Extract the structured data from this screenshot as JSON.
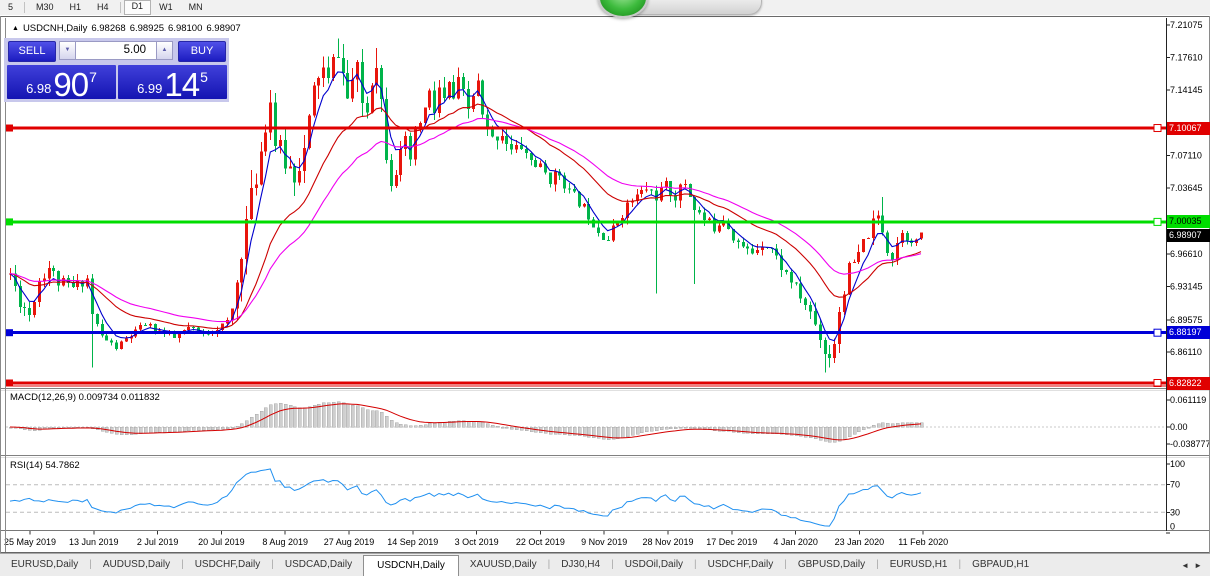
{
  "icons": {
    "collapse": "▲",
    "spin_down": "▼",
    "spin_up": "▲",
    "scroll_left": "◄",
    "scroll_right": "►"
  },
  "toolbar": {
    "timeframes": [
      "5",
      "M30",
      "H1",
      "H4",
      "D1",
      "W1",
      "MN"
    ],
    "active": "D1",
    "separators_after": [
      0,
      3
    ]
  },
  "window": {
    "symbol_header": {
      "symbol": "USDCNH,Daily",
      "open": "6.98268",
      "high": "6.98925",
      "low": "6.98100",
      "close": "6.98907"
    }
  },
  "trade_panel": {
    "sell_label": "SELL",
    "buy_label": "BUY",
    "volume": "5.00",
    "sell_price": {
      "prefix": "6.98",
      "big": "90",
      "sup": "7"
    },
    "buy_price": {
      "prefix": "6.99",
      "big": "14",
      "sup": "5"
    }
  },
  "chart_data": {
    "type": "candlestick",
    "symbol": "USDCNH",
    "timeframe": "Daily",
    "bar_count": 190,
    "last_bar": {
      "open": 6.98268,
      "high": 6.98925,
      "low": 6.981,
      "close": 6.98907
    },
    "candle_colors": {
      "bull": "#e8150c",
      "bear": "#00b44a"
    },
    "y_axis": {
      "min": 6.818,
      "max": 7.215,
      "ticks": [
        {
          "label": "7.21075",
          "price": 7.21075
        },
        {
          "label": "7.17610",
          "price": 7.1761
        },
        {
          "label": "7.14145",
          "price": 7.14145
        },
        {
          "label": "7.07110",
          "price": 7.0711
        },
        {
          "label": "7.03645",
          "price": 7.03645
        },
        {
          "label": "6.96610",
          "price": 6.9661
        },
        {
          "label": "6.93145",
          "price": 6.93145
        },
        {
          "label": "6.89575",
          "price": 6.89575
        },
        {
          "label": "6.86110",
          "price": 6.8611
        }
      ]
    },
    "x_axis": {
      "labels": [
        "25 May 2019",
        "13 Jun 2019",
        "2 Jul 2019",
        "20 Jul 2019",
        "8 Aug 2019",
        "27 Aug 2019",
        "14 Sep 2019",
        "3 Oct 2019",
        "22 Oct 2019",
        "9 Nov 2019",
        "28 Nov 2019",
        "17 Dec 2019",
        "4 Jan 2020",
        "23 Jan 2020",
        "11 Feb 2020"
      ]
    },
    "levels": [
      {
        "price": 7.10067,
        "label": "7.10067",
        "color": "#e00000",
        "text_color": "#ffffff",
        "width": 3
      },
      {
        "price": 7.00035,
        "label": "7.00035",
        "color": "#00dd00",
        "text_color": "#000000",
        "width": 3
      },
      {
        "price": 6.88197,
        "label": "6.88197",
        "color": "#0000d8",
        "text_color": "#ffffff",
        "width": 3
      },
      {
        "price": 6.82822,
        "label": "6.82822",
        "color": "#e00000",
        "text_color": "#ffffff",
        "width": 3
      },
      {
        "price": 6.825,
        "label": "",
        "color": "#e00000",
        "text_color": "",
        "width": 1
      }
    ],
    "current_price_badge": {
      "price": 6.98907,
      "label": "6.98907",
      "color": "#000000",
      "text_color": "#ffffff"
    },
    "moving_averages": [
      {
        "period": 5,
        "color": "#0000cd"
      },
      {
        "period": 20,
        "color": "#cc0000"
      },
      {
        "period": 34,
        "color": "#f000f0"
      }
    ],
    "price_path_anchors": [
      [
        0,
        6.945
      ],
      [
        2,
        6.916
      ],
      [
        4,
        6.902
      ],
      [
        6,
        6.938
      ],
      [
        8,
        6.952
      ],
      [
        10,
        6.936
      ],
      [
        13,
        6.93
      ],
      [
        16,
        6.94
      ],
      [
        17,
        6.902
      ],
      [
        19,
        6.878
      ],
      [
        22,
        6.866
      ],
      [
        25,
        6.879
      ],
      [
        28,
        6.891
      ],
      [
        31,
        6.884
      ],
      [
        34,
        6.876
      ],
      [
        37,
        6.887
      ],
      [
        40,
        6.88
      ],
      [
        43,
        6.887
      ],
      [
        45,
        6.893
      ],
      [
        46,
        6.906
      ],
      [
        47,
        6.936
      ],
      [
        48,
        6.974
      ],
      [
        49,
        7.0
      ],
      [
        50,
        7.024
      ],
      [
        51,
        7.05
      ],
      [
        52,
        7.078
      ],
      [
        53,
        7.108
      ],
      [
        54,
        7.13
      ],
      [
        55,
        7.086
      ],
      [
        57,
        7.064
      ],
      [
        59,
        7.052
      ],
      [
        61,
        7.076
      ],
      [
        62,
        7.106
      ],
      [
        63,
        7.14
      ],
      [
        64,
        7.158
      ],
      [
        65,
        7.162
      ],
      [
        66,
        7.148
      ],
      [
        67,
        7.17
      ],
      [
        68,
        7.184
      ],
      [
        69,
        7.158
      ],
      [
        70,
        7.132
      ],
      [
        71,
        7.152
      ],
      [
        72,
        7.16
      ],
      [
        73,
        7.128
      ],
      [
        74,
        7.12
      ],
      [
        75,
        7.155
      ],
      [
        76,
        7.174
      ],
      [
        77,
        7.13
      ],
      [
        78,
        7.076
      ],
      [
        79,
        7.048
      ],
      [
        80,
        7.058
      ],
      [
        81,
        7.07
      ],
      [
        82,
        7.082
      ],
      [
        83,
        7.066
      ],
      [
        84,
        7.09
      ],
      [
        85,
        7.108
      ],
      [
        86,
        7.12
      ],
      [
        87,
        7.136
      ],
      [
        88,
        7.118
      ],
      [
        89,
        7.142
      ],
      [
        90,
        7.128
      ],
      [
        91,
        7.146
      ],
      [
        92,
        7.132
      ],
      [
        93,
        7.148
      ],
      [
        94,
        7.136
      ],
      [
        95,
        7.12
      ],
      [
        96,
        7.136
      ],
      [
        97,
        7.148
      ],
      [
        98,
        7.112
      ],
      [
        99,
        7.098
      ],
      [
        100,
        7.088
      ],
      [
        102,
        7.096
      ],
      [
        104,
        7.076
      ],
      [
        106,
        7.081
      ],
      [
        108,
        7.066
      ],
      [
        110,
        7.058
      ],
      [
        112,
        7.046
      ],
      [
        114,
        7.052
      ],
      [
        116,
        7.032
      ],
      [
        118,
        7.022
      ],
      [
        120,
        7.008
      ],
      [
        122,
        6.992
      ],
      [
        124,
        6.982
      ],
      [
        126,
        7.002
      ],
      [
        128,
        7.018
      ],
      [
        130,
        7.028
      ],
      [
        132,
        7.036
      ],
      [
        134,
        7.028
      ],
      [
        136,
        7.038
      ],
      [
        138,
        7.028
      ],
      [
        140,
        7.042
      ],
      [
        142,
        7.016
      ],
      [
        144,
        7.002
      ],
      [
        146,
        6.995
      ],
      [
        148,
        7.006
      ],
      [
        150,
        6.985
      ],
      [
        152,
        6.972
      ],
      [
        154,
        6.968
      ],
      [
        156,
        6.978
      ],
      [
        158,
        6.972
      ],
      [
        160,
        6.952
      ],
      [
        162,
        6.938
      ],
      [
        164,
        6.92
      ],
      [
        166,
        6.904
      ],
      [
        168,
        6.878
      ],
      [
        169,
        6.862
      ],
      [
        170,
        6.858
      ],
      [
        171,
        6.874
      ],
      [
        172,
        6.906
      ],
      [
        173,
        6.93
      ],
      [
        174,
        6.948
      ],
      [
        175,
        6.956
      ],
      [
        176,
        6.963
      ],
      [
        177,
        6.978
      ],
      [
        178,
        6.988
      ],
      [
        179,
        6.998
      ],
      [
        180,
        7.005
      ],
      [
        181,
        6.992
      ],
      [
        182,
        6.972
      ],
      [
        183,
        6.962
      ],
      [
        184,
        6.978
      ],
      [
        185,
        6.992
      ],
      [
        186,
        6.985
      ],
      [
        187,
        6.975
      ],
      [
        188,
        6.982
      ],
      [
        189,
        6.98907
      ]
    ],
    "volatility_anchors": [
      [
        0,
        0.018
      ],
      [
        14,
        0.014
      ],
      [
        19,
        0.008
      ],
      [
        45,
        0.008
      ],
      [
        48,
        0.034
      ],
      [
        55,
        0.03
      ],
      [
        70,
        0.026
      ],
      [
        80,
        0.024
      ],
      [
        95,
        0.018
      ],
      [
        110,
        0.014
      ],
      [
        125,
        0.013
      ],
      [
        140,
        0.015
      ],
      [
        155,
        0.011
      ],
      [
        165,
        0.014
      ],
      [
        172,
        0.022
      ],
      [
        180,
        0.015
      ],
      [
        189,
        0.008
      ]
    ],
    "wick_spikes": [
      {
        "i": 17,
        "low": 6.845
      },
      {
        "i": 68,
        "high": 7.1965
      },
      {
        "i": 76,
        "high": 7.186
      },
      {
        "i": 134,
        "low": 6.924
      },
      {
        "i": 142,
        "low": 6.934
      },
      {
        "i": 169,
        "low": 6.8395
      },
      {
        "i": 181,
        "high": 7.027
      }
    ]
  },
  "macd_panel": {
    "label": "MACD(12,26,9) 0.009734 0.011832",
    "params": [
      12,
      26,
      9
    ],
    "current_macd": 0.009734,
    "current_signal": 0.011832,
    "ticks": [
      {
        "label": "0.061119",
        "value": 0.061119
      },
      {
        "label": "0.00",
        "value": 0
      },
      {
        "label": "-0.038777",
        "value": -0.038777
      }
    ],
    "histogram_color": "#cfcfcf",
    "signal_color": "#d40000"
  },
  "rsi_panel": {
    "label": "RSI(14) 54.7862",
    "period": 14,
    "current": 54.7862,
    "ticks": [
      {
        "label": "100",
        "value": 100
      },
      {
        "label": "70",
        "value": 70
      },
      {
        "label": "30",
        "value": 30
      },
      {
        "label": "0",
        "value": 0
      }
    ],
    "dashed_levels": [
      70,
      30
    ],
    "line_color": "#2090f0"
  },
  "tabs": {
    "items": [
      "EURUSD,Daily",
      "AUDUSD,Daily",
      "USDCHF,Daily",
      "USDCAD,Daily",
      "USDCNH,Daily",
      "XAUUSD,Daily",
      "DJ30,H4",
      "USDOil,Daily",
      "USDCHF,Daily",
      "GBPUSD,Daily",
      "EURUSD,H1",
      "GBPAUD,H1"
    ],
    "active_index": 4
  }
}
